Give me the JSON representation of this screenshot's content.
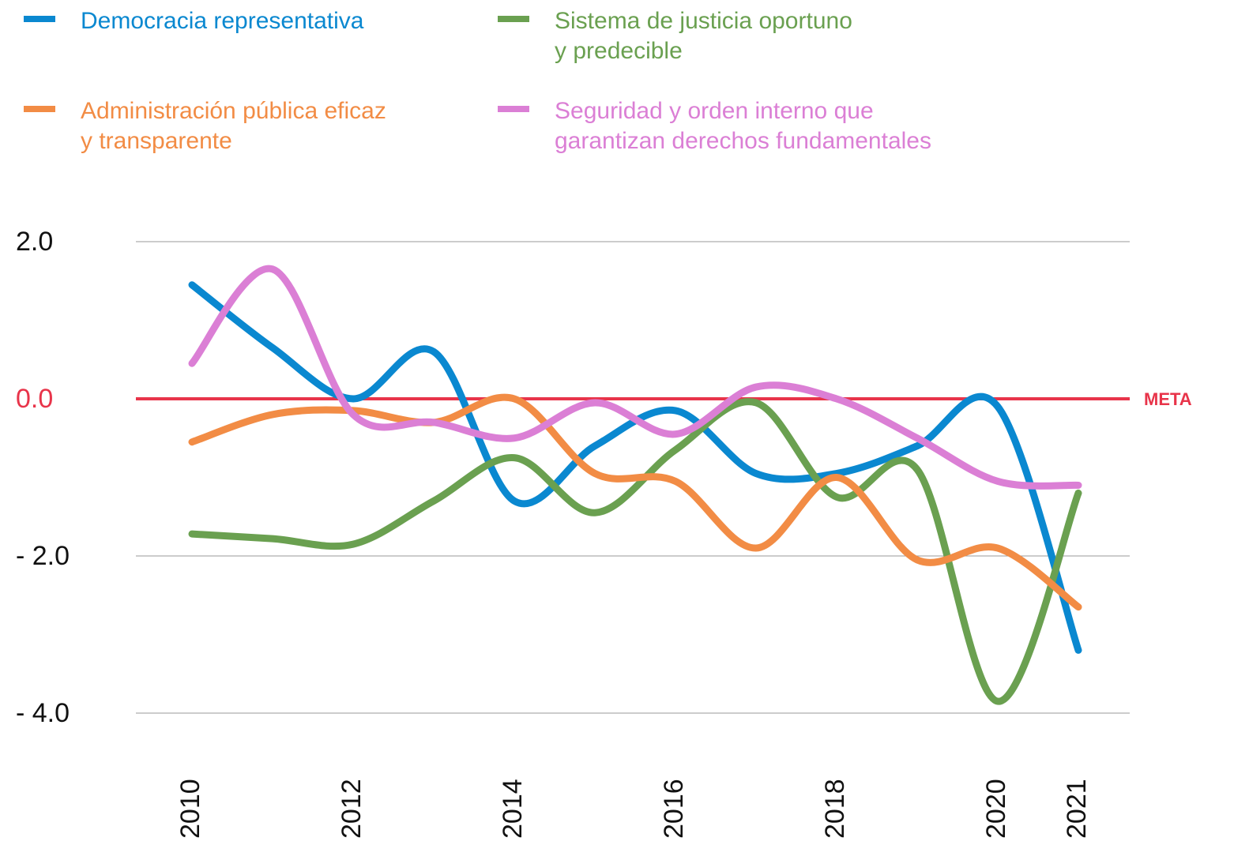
{
  "chart_data": {
    "type": "line",
    "categories": [
      "2010",
      null,
      "2012",
      null,
      "2014",
      null,
      "2016",
      null,
      "2018",
      null,
      "2020",
      "2021"
    ],
    "series": [
      {
        "name": "Democracia representativa",
        "color": "#0a88d0",
        "values": [
          1.45,
          0.65,
          0.0,
          0.6,
          -1.3,
          -0.6,
          -0.15,
          -0.95,
          -0.95,
          -0.6,
          -0.1,
          -3.2
        ]
      },
      {
        "name": "Sistema de justicia oportuno\ny predecible",
        "color": "#6aa050",
        "values": [
          -1.72,
          -1.78,
          -1.85,
          -1.3,
          -0.75,
          -1.45,
          -0.65,
          -0.05,
          -1.25,
          -0.9,
          -3.85,
          -1.2
        ]
      },
      {
        "name": "Administración pública eficaz\ny transparente",
        "color": "#f28c45",
        "values": [
          -0.55,
          -0.2,
          -0.15,
          -0.3,
          0.0,
          -0.95,
          -1.05,
          -1.9,
          -1.0,
          -2.05,
          -1.9,
          -2.65
        ]
      },
      {
        "name": "Seguridad y orden interno que\ngarantizan derechos fundamentales",
        "color": "#db7fd5",
        "values": [
          0.45,
          1.65,
          -0.2,
          -0.3,
          -0.5,
          -0.05,
          -0.45,
          0.15,
          0.0,
          -0.5,
          -1.05,
          -1.1
        ]
      }
    ],
    "ylim": [
      -4,
      2
    ],
    "yticks": [
      {
        "value": 2,
        "label": "2.0"
      },
      {
        "value": 0,
        "label": "0.0"
      },
      {
        "value": -2,
        "label": "- 2.0"
      },
      {
        "value": -4,
        "label": "- 4.0"
      }
    ],
    "grid": true,
    "reference_line": {
      "value": 0,
      "label": "META",
      "color": "#e8344a"
    }
  }
}
